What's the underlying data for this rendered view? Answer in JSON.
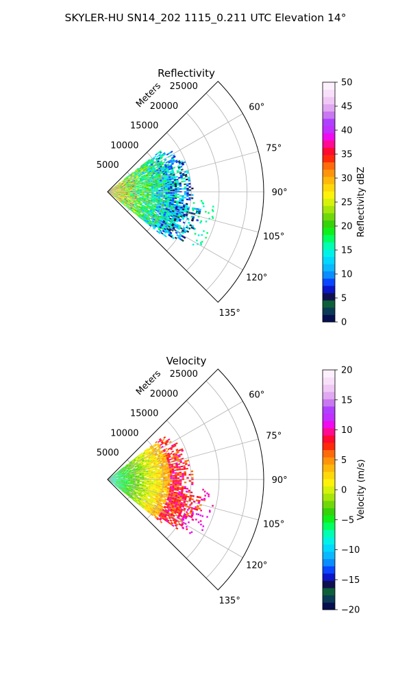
{
  "figure_title": "SKYLER-HU  SN14_202  1115_0.211 UTC Elevation 14°",
  "chart_data": [
    {
      "type": "heatmap",
      "projection": "polar-sector",
      "title": "Reflectivity",
      "radial_label": "Meters",
      "r_ticks": [
        5000,
        10000,
        15000,
        20000,
        25000
      ],
      "r_tick_labels": [
        "5000",
        "10000",
        "15000",
        "20000",
        "25000"
      ],
      "rlim": [
        0,
        28000
      ],
      "theta_range_deg": [
        45,
        135
      ],
      "theta_ticks": [
        60,
        75,
        90,
        105,
        120,
        135
      ],
      "theta_tick_labels": [
        "60°",
        "75°",
        "90°",
        "105°",
        "120°",
        "135°"
      ],
      "data_extent": {
        "theta_deg": [
          52,
          128
        ],
        "r_max_m": [
          12000,
          17500
        ]
      },
      "grid": true,
      "colorbar": {
        "label": "Reflectivity dBZ",
        "range": [
          0,
          50
        ],
        "ticks": [
          0,
          5,
          10,
          15,
          20,
          25,
          30,
          35,
          40,
          45,
          50
        ],
        "tick_labels": [
          "0",
          "5",
          "10",
          "15",
          "20",
          "25",
          "30",
          "35",
          "40",
          "45",
          "50"
        ],
        "colors": [
          "#06104f",
          "#0a3a56",
          "#0d5f3a",
          "#10104f",
          "#0b16c8",
          "#0a46ff",
          "#0a8dff",
          "#0ab8ff",
          "#00d8ff",
          "#00f2e6",
          "#00ffb0",
          "#00ff60",
          "#10ef1a",
          "#36d20a",
          "#6fd80a",
          "#a6e60a",
          "#d6f20a",
          "#fff20a",
          "#ffd80a",
          "#ffb80a",
          "#ff940a",
          "#ff6a0a",
          "#ff2a0a",
          "#ff0a30",
          "#ff0a90",
          "#f00aef",
          "#c030ff",
          "#b040ff",
          "#c878f0",
          "#e0a8f0",
          "#f0c8f5",
          "#f8e0fa",
          "#fcf0fc"
        ]
      }
    },
    {
      "type": "heatmap",
      "projection": "polar-sector",
      "title": "Velocity",
      "radial_label": "Meters",
      "r_ticks": [
        5000,
        10000,
        15000,
        20000,
        25000
      ],
      "r_tick_labels": [
        "5000",
        "10000",
        "15000",
        "20000",
        "25000"
      ],
      "rlim": [
        0,
        28000
      ],
      "theta_range_deg": [
        45,
        135
      ],
      "theta_ticks": [
        60,
        75,
        90,
        105,
        120,
        135
      ],
      "theta_tick_labels": [
        "60°",
        "75°",
        "90°",
        "105°",
        "120°",
        "135°"
      ],
      "data_extent": {
        "theta_deg": [
          52,
          128
        ],
        "r_max_m": [
          12000,
          17500
        ]
      },
      "grid": true,
      "colorbar": {
        "label": "Velocity (m/s)",
        "range": [
          -20,
          20
        ],
        "ticks": [
          -20,
          -15,
          -10,
          -5,
          0,
          5,
          10,
          15,
          20
        ],
        "tick_labels": [
          "−20",
          "−15",
          "−10",
          "−5",
          "0",
          "5",
          "10",
          "15",
          "20"
        ],
        "colors": [
          "#06104f",
          "#0a3a56",
          "#0d5f3a",
          "#10104f",
          "#0b16c8",
          "#0a46ff",
          "#0a8dff",
          "#0ab8ff",
          "#00d8ff",
          "#00f2e6",
          "#00ffb0",
          "#00ff60",
          "#10ef1a",
          "#36d20a",
          "#6fd80a",
          "#a6e60a",
          "#d6f20a",
          "#fff20a",
          "#ffd80a",
          "#ffb80a",
          "#ff940a",
          "#ff6a0a",
          "#ff2a0a",
          "#ff0a30",
          "#ff0a90",
          "#f00aef",
          "#c030ff",
          "#b040ff",
          "#c878f0",
          "#e0a8f0",
          "#f0c8f5",
          "#f8e0fa",
          "#fcf0fc"
        ]
      }
    }
  ]
}
